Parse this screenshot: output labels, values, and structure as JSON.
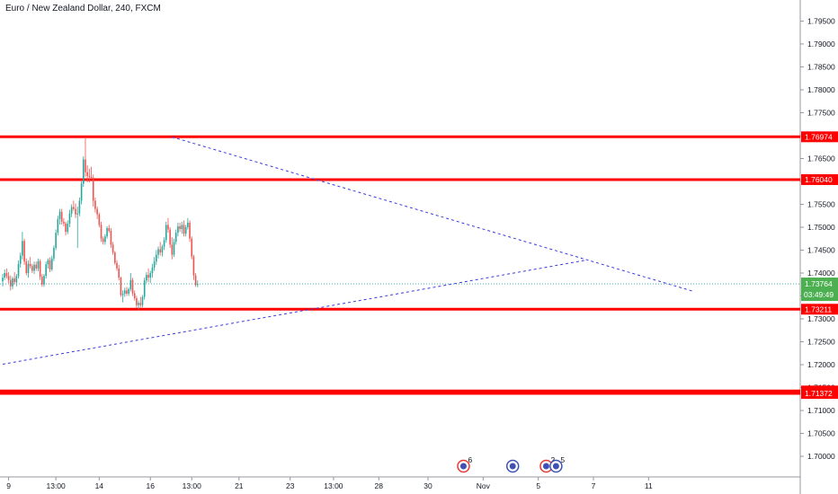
{
  "header": {
    "title": "Euro / New Zealand Dollar, 240, FXCM"
  },
  "colors": {
    "up": "#26a69a",
    "down": "#ef5350",
    "level": "#ff0000",
    "trendline": "#3b3bdc",
    "current_price_line": "#26a69a",
    "badge_red": "#ff0000",
    "badge_green": "#4caf50",
    "axis_text": "#131722",
    "event_blue": "#3f51b5",
    "event_red": "#e53935"
  },
  "chart_data": {
    "type": "candlestick",
    "symbol": "Euro / New Zealand Dollar",
    "interval": "240",
    "source": "FXCM",
    "y_range": [
      1.6955,
      1.7996
    ],
    "y_ticks": [
      "1.79500",
      "1.79000",
      "1.78500",
      "1.78000",
      "1.77500",
      "1.77000",
      "1.76500",
      "1.76000",
      "1.75500",
      "1.75000",
      "1.74500",
      "1.74000",
      "1.73500",
      "1.73000",
      "1.72500",
      "1.72000",
      "1.71500",
      "1.71000",
      "1.70500",
      "1.70000"
    ],
    "x_ticks": [
      "9",
      "13:00",
      "14",
      "16",
      "13:00",
      "21",
      "23",
      "13:00",
      "28",
      "30",
      "Nov",
      "5",
      "7",
      "11"
    ],
    "x_tick_bar_index": [
      3,
      27,
      49,
      75,
      96,
      120,
      146,
      168,
      191,
      216,
      244,
      272,
      300,
      328
    ],
    "levels": [
      {
        "price": 1.76974,
        "label": "1.76974"
      },
      {
        "price": 1.7604,
        "label": "1.76040"
      },
      {
        "price": 1.73211,
        "label": "1.73211"
      },
      {
        "price": 1.71426,
        "label": "1.71426"
      },
      {
        "price": 1.71372,
        "label": "1.71372"
      }
    ],
    "current_price": {
      "price": 1.73764,
      "label": "1.73764",
      "countdown": "03:49:49"
    },
    "trendlines": [
      {
        "style": "dashed",
        "from": {
          "bar": 86,
          "price": 1.7697
        },
        "to": {
          "bar": 350,
          "price": 1.7361
        }
      },
      {
        "style": "dashed",
        "from": {
          "bar": 0,
          "price": 1.7201
        },
        "to": {
          "bar": 296,
          "price": 1.7428
        }
      }
    ],
    "events": [
      {
        "bar": 234,
        "kind": "red",
        "count": "6"
      },
      {
        "bar": 259,
        "kind": "blue",
        "count": ""
      },
      {
        "bar": 276,
        "kind": "red",
        "count": "2"
      },
      {
        "bar": 281,
        "kind": "blue",
        "count": "5"
      }
    ],
    "candles": [
      [
        1.7382,
        1.7398,
        1.7371,
        1.739
      ],
      [
        1.739,
        1.7408,
        1.7385,
        1.74
      ],
      [
        1.74,
        1.741,
        1.7388,
        1.7393
      ],
      [
        1.7393,
        1.7402,
        1.7378,
        1.7385
      ],
      [
        1.7385,
        1.7395,
        1.7362,
        1.7371
      ],
      [
        1.7371,
        1.7392,
        1.7365,
        1.7388
      ],
      [
        1.7388,
        1.7402,
        1.7375,
        1.738
      ],
      [
        1.738,
        1.7398,
        1.7371,
        1.7393
      ],
      [
        1.7393,
        1.7428,
        1.7388,
        1.742
      ],
      [
        1.742,
        1.7445,
        1.7412,
        1.7438
      ],
      [
        1.7438,
        1.749,
        1.743,
        1.747
      ],
      [
        1.747,
        1.7475,
        1.7418,
        1.7425
      ],
      [
        1.7425,
        1.7432,
        1.7395,
        1.74
      ],
      [
        1.74,
        1.7428,
        1.739,
        1.742
      ],
      [
        1.742,
        1.7435,
        1.741,
        1.7415
      ],
      [
        1.7415,
        1.742,
        1.74,
        1.7405
      ],
      [
        1.7405,
        1.7425,
        1.7398,
        1.7418
      ],
      [
        1.7418,
        1.7425,
        1.7405,
        1.741
      ],
      [
        1.741,
        1.7432,
        1.7404,
        1.7426
      ],
      [
        1.7426,
        1.743,
        1.7385,
        1.7392
      ],
      [
        1.7392,
        1.7398,
        1.737,
        1.7375
      ],
      [
        1.7375,
        1.7398,
        1.737,
        1.7394
      ],
      [
        1.7394,
        1.7425,
        1.7388,
        1.7419
      ],
      [
        1.7419,
        1.7432,
        1.741,
        1.7428
      ],
      [
        1.7428,
        1.7434,
        1.7402,
        1.7408
      ],
      [
        1.7408,
        1.7438,
        1.7404,
        1.7432
      ],
      [
        1.7432,
        1.746,
        1.7426,
        1.7455
      ],
      [
        1.7455,
        1.7495,
        1.745,
        1.7488
      ],
      [
        1.7488,
        1.7525,
        1.7482,
        1.7518
      ],
      [
        1.7518,
        1.754,
        1.7506,
        1.7534
      ],
      [
        1.7534,
        1.754,
        1.7506,
        1.7512
      ],
      [
        1.7512,
        1.752,
        1.7502,
        1.7508
      ],
      [
        1.7508,
        1.7512,
        1.7482,
        1.749
      ],
      [
        1.749,
        1.7515,
        1.7485,
        1.7508
      ],
      [
        1.7508,
        1.7538,
        1.75,
        1.753
      ],
      [
        1.753,
        1.755,
        1.7522,
        1.7544
      ],
      [
        1.7544,
        1.7558,
        1.7536,
        1.754
      ],
      [
        1.754,
        1.7552,
        1.752,
        1.7528
      ],
      [
        1.7528,
        1.7545,
        1.7455,
        1.753
      ],
      [
        1.753,
        1.7565,
        1.7524,
        1.7558
      ],
      [
        1.7558,
        1.76,
        1.755,
        1.7595
      ],
      [
        1.7595,
        1.7655,
        1.7588,
        1.7648
      ],
      [
        1.7648,
        1.7697,
        1.761,
        1.762
      ],
      [
        1.762,
        1.7635,
        1.7598,
        1.7612
      ],
      [
        1.7612,
        1.7628,
        1.7598,
        1.761
      ],
      [
        1.761,
        1.7632,
        1.7604,
        1.7608
      ],
      [
        1.7608,
        1.7615,
        1.7545,
        1.7558
      ],
      [
        1.7558,
        1.7565,
        1.7532,
        1.754
      ],
      [
        1.754,
        1.7545,
        1.7518,
        1.7528
      ],
      [
        1.7528,
        1.7532,
        1.75,
        1.7505
      ],
      [
        1.7505,
        1.7512,
        1.7468,
        1.7475
      ],
      [
        1.7475,
        1.748,
        1.7462,
        1.7468
      ],
      [
        1.7468,
        1.7485,
        1.7462,
        1.748
      ],
      [
        1.748,
        1.7502,
        1.7475,
        1.7498
      ],
      [
        1.7498,
        1.7505,
        1.7488,
        1.7492
      ],
      [
        1.7492,
        1.7498,
        1.7455,
        1.7462
      ],
      [
        1.7462,
        1.7468,
        1.744,
        1.7445
      ],
      [
        1.7445,
        1.7448,
        1.7418,
        1.7422
      ],
      [
        1.7422,
        1.7428,
        1.7405,
        1.741
      ],
      [
        1.741,
        1.7418,
        1.7384,
        1.739
      ],
      [
        1.739,
        1.7392,
        1.7348,
        1.7352
      ],
      [
        1.7352,
        1.7362,
        1.7336,
        1.7355
      ],
      [
        1.7355,
        1.7368,
        1.7348,
        1.7362
      ],
      [
        1.7362,
        1.737,
        1.735,
        1.7355
      ],
      [
        1.7355,
        1.7368,
        1.735,
        1.7365
      ],
      [
        1.7365,
        1.74,
        1.736,
        1.7385
      ],
      [
        1.7385,
        1.739,
        1.735,
        1.7356
      ],
      [
        1.7356,
        1.7362,
        1.734,
        1.7345
      ],
      [
        1.7345,
        1.735,
        1.7324,
        1.733
      ],
      [
        1.733,
        1.734,
        1.732,
        1.7335
      ],
      [
        1.7335,
        1.7348,
        1.7325,
        1.733
      ],
      [
        1.733,
        1.7352,
        1.7325,
        1.7348
      ],
      [
        1.7348,
        1.739,
        1.7342,
        1.7384
      ],
      [
        1.7384,
        1.7402,
        1.7378,
        1.7396
      ],
      [
        1.7396,
        1.741,
        1.738,
        1.739
      ],
      [
        1.739,
        1.7405,
        1.7378,
        1.74
      ],
      [
        1.74,
        1.742,
        1.739,
        1.7412
      ],
      [
        1.7412,
        1.7435,
        1.7405,
        1.7425
      ],
      [
        1.7425,
        1.745,
        1.7418,
        1.744
      ],
      [
        1.744,
        1.7458,
        1.7432,
        1.7452
      ],
      [
        1.7452,
        1.7468,
        1.7438,
        1.7445
      ],
      [
        1.7445,
        1.7462,
        1.7436,
        1.7458
      ],
      [
        1.7458,
        1.7478,
        1.745,
        1.7472
      ],
      [
        1.7472,
        1.7512,
        1.7466,
        1.7505
      ],
      [
        1.7505,
        1.752,
        1.7488,
        1.7495
      ],
      [
        1.7495,
        1.75,
        1.7455,
        1.7462
      ],
      [
        1.7462,
        1.7478,
        1.743,
        1.744
      ],
      [
        1.744,
        1.7475,
        1.7435,
        1.7468
      ],
      [
        1.7468,
        1.7495,
        1.7462,
        1.7488
      ],
      [
        1.7488,
        1.751,
        1.748,
        1.7502
      ],
      [
        1.7502,
        1.751,
        1.749,
        1.7496
      ],
      [
        1.7496,
        1.7512,
        1.7486,
        1.7505
      ],
      [
        1.7505,
        1.7515,
        1.748,
        1.7486
      ],
      [
        1.7486,
        1.7505,
        1.748,
        1.75
      ],
      [
        1.75,
        1.752,
        1.7495,
        1.751
      ],
      [
        1.751,
        1.7515,
        1.7468,
        1.7475
      ],
      [
        1.7475,
        1.748,
        1.743,
        1.7436
      ],
      [
        1.7436,
        1.744,
        1.7385,
        1.7395
      ],
      [
        1.7395,
        1.74,
        1.737,
        1.7374
      ],
      [
        1.7374,
        1.7384,
        1.7369,
        1.7376
      ]
    ]
  }
}
